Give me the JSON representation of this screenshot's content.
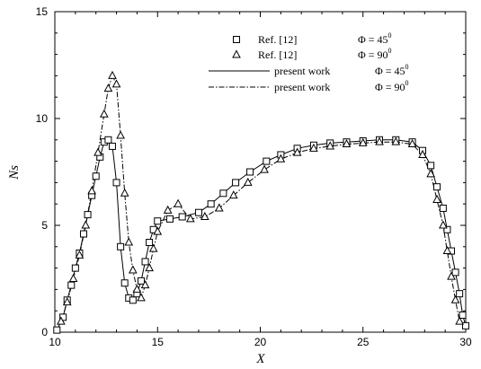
{
  "chart_data": {
    "type": "line",
    "xlabel": "X",
    "ylabel": "Ns",
    "xlim": [
      10,
      30
    ],
    "ylim": [
      0,
      15
    ],
    "x_ticks": [
      10,
      15,
      20,
      25,
      30
    ],
    "y_ticks": [
      0,
      5,
      10,
      15
    ],
    "legend_position": "top-center",
    "legend": [
      {
        "ref": "Ref. [12]",
        "phi_label": "Φ = 45",
        "degree": "0",
        "style": "square"
      },
      {
        "ref": "Ref. [12]",
        "phi_label": "Φ = 90",
        "degree": "0",
        "style": "triangle"
      },
      {
        "ref": "present work",
        "phi_label": "Φ = 45",
        "degree": "0",
        "style": "solid"
      },
      {
        "ref": "present work",
        "phi_label": "Φ = 90",
        "degree": "0",
        "style": "dashdot"
      }
    ],
    "series": [
      {
        "name": "Ref. [12] Φ = 45°",
        "marker": "square",
        "x": [
          10.1,
          10.4,
          10.6,
          10.8,
          11.0,
          11.2,
          11.4,
          11.6,
          11.8,
          12.0,
          12.2,
          12.4,
          12.6,
          12.8,
          13.0,
          13.2,
          13.4,
          13.6,
          13.8,
          14.0,
          14.2,
          14.4,
          14.6,
          14.8,
          15.0,
          15.6,
          16.2,
          17.0,
          17.6,
          18.2,
          18.8,
          19.5,
          20.3,
          21.0,
          21.8,
          22.6,
          23.4,
          24.2,
          25.0,
          25.8,
          26.6,
          27.4,
          27.9,
          28.3,
          28.6,
          28.9,
          29.1,
          29.3,
          29.5,
          29.7,
          29.85,
          30.0
        ],
        "y": [
          0.1,
          0.7,
          1.5,
          2.2,
          3.0,
          3.7,
          4.6,
          5.5,
          6.4,
          7.3,
          8.2,
          8.9,
          9.0,
          8.7,
          7.0,
          4.0,
          2.3,
          1.6,
          1.5,
          1.8,
          2.4,
          3.3,
          4.2,
          4.8,
          5.2,
          5.3,
          5.4,
          5.6,
          6.0,
          6.5,
          7.0,
          7.5,
          8.0,
          8.3,
          8.6,
          8.75,
          8.85,
          8.9,
          8.95,
          9.0,
          9.0,
          8.9,
          8.5,
          7.8,
          6.8,
          5.8,
          4.8,
          3.8,
          2.8,
          1.8,
          0.8,
          0.3
        ]
      },
      {
        "name": "Ref. [12] Φ = 90°",
        "marker": "triangle",
        "x": [
          10.3,
          10.6,
          10.9,
          11.2,
          11.5,
          11.8,
          12.1,
          12.4,
          12.6,
          12.8,
          13.0,
          13.2,
          13.4,
          13.6,
          13.8,
          14.0,
          14.2,
          14.4,
          14.6,
          14.8,
          15.0,
          15.5,
          16.0,
          16.6,
          17.3,
          18.0,
          18.7,
          19.4,
          20.2,
          21.0,
          21.8,
          22.6,
          23.4,
          24.2,
          25.0,
          25.8,
          26.6,
          27.4,
          27.9,
          28.3,
          28.6,
          28.9,
          29.1,
          29.3,
          29.5,
          29.7
        ],
        "y": [
          0.5,
          1.4,
          2.5,
          3.6,
          5.0,
          6.6,
          8.4,
          10.2,
          11.4,
          12.0,
          11.6,
          9.2,
          6.5,
          4.2,
          2.9,
          2.0,
          1.6,
          2.2,
          3.0,
          3.9,
          4.7,
          5.7,
          6.0,
          5.3,
          5.4,
          5.8,
          6.4,
          7.0,
          7.6,
          8.1,
          8.4,
          8.6,
          8.7,
          8.8,
          8.85,
          8.9,
          8.9,
          8.8,
          8.3,
          7.4,
          6.2,
          5.0,
          3.8,
          2.6,
          1.5,
          0.5
        ]
      },
      {
        "name": "present work Φ = 45°",
        "style": "solid",
        "x": [
          10.1,
          10.4,
          10.6,
          10.8,
          11.0,
          11.2,
          11.4,
          11.6,
          11.8,
          12.0,
          12.2,
          12.4,
          12.6,
          12.8,
          13.0,
          13.2,
          13.4,
          13.6,
          13.8,
          14.0,
          14.2,
          14.4,
          14.6,
          14.8,
          15.0,
          15.6,
          16.2,
          17.0,
          17.6,
          18.2,
          18.8,
          19.5,
          20.3,
          21.0,
          21.8,
          22.6,
          23.4,
          24.2,
          25.0,
          25.8,
          26.6,
          27.4,
          27.9,
          28.3,
          28.6,
          28.9,
          29.1,
          29.3,
          29.5,
          29.7,
          29.85,
          30.0
        ],
        "y": [
          0.1,
          0.7,
          1.5,
          2.2,
          3.0,
          3.7,
          4.6,
          5.5,
          6.4,
          7.3,
          8.2,
          8.9,
          9.0,
          8.7,
          7.0,
          4.0,
          2.3,
          1.6,
          1.5,
          1.8,
          2.4,
          3.3,
          4.2,
          4.8,
          5.2,
          5.3,
          5.4,
          5.6,
          6.0,
          6.5,
          7.0,
          7.5,
          8.0,
          8.3,
          8.6,
          8.75,
          8.85,
          8.9,
          8.95,
          9.0,
          9.0,
          8.9,
          8.5,
          7.8,
          6.8,
          5.8,
          4.8,
          3.8,
          2.8,
          1.8,
          0.8,
          0.3
        ]
      },
      {
        "name": "present work Φ = 90°",
        "style": "dashdot",
        "x": [
          10.3,
          10.6,
          10.9,
          11.2,
          11.5,
          11.8,
          12.1,
          12.4,
          12.6,
          12.8,
          13.0,
          13.2,
          13.4,
          13.6,
          13.8,
          14.0,
          14.2,
          14.4,
          14.6,
          14.8,
          15.0,
          15.5,
          16.0,
          16.6,
          17.3,
          18.0,
          18.7,
          19.4,
          20.2,
          21.0,
          21.8,
          22.6,
          23.4,
          24.2,
          25.0,
          25.8,
          26.6,
          27.4,
          27.9,
          28.3,
          28.6,
          28.9,
          29.1,
          29.3,
          29.5,
          29.7
        ],
        "y": [
          0.5,
          1.4,
          2.5,
          3.6,
          5.0,
          6.6,
          8.4,
          10.2,
          11.4,
          12.0,
          11.6,
          9.2,
          6.5,
          4.2,
          2.9,
          2.0,
          1.6,
          2.2,
          3.0,
          3.9,
          4.7,
          5.7,
          6.0,
          5.3,
          5.4,
          5.8,
          6.4,
          7.0,
          7.6,
          8.1,
          8.4,
          8.6,
          8.7,
          8.8,
          8.85,
          8.9,
          8.9,
          8.8,
          8.3,
          7.4,
          6.2,
          5.0,
          3.8,
          2.6,
          1.5,
          0.5
        ]
      }
    ]
  }
}
